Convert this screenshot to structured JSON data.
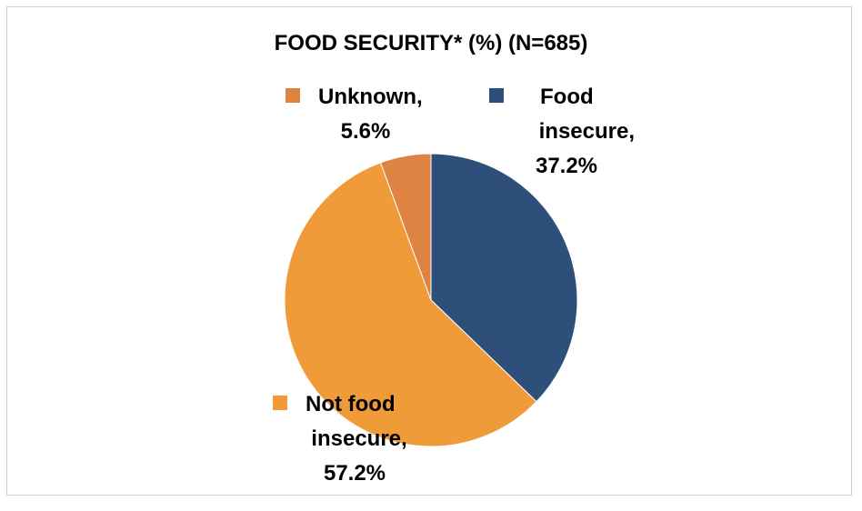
{
  "chart_data": {
    "type": "pie",
    "title": "FOOD SECURITY* (%) (N=685)",
    "slices": [
      {
        "label_line1": "Food",
        "label_line2": "insecure,",
        "value_text": "37.2%",
        "value": 37.2,
        "color": "#2e4f79"
      },
      {
        "label_line1": "Not food",
        "label_line2": "insecure,",
        "value_text": "57.2%",
        "value": 57.2,
        "color": "#ef9b3a"
      },
      {
        "label_line1": "Unknown,",
        "label_line2": "",
        "value_text": "5.6%",
        "value": 5.6,
        "color": "#df8342"
      }
    ]
  }
}
